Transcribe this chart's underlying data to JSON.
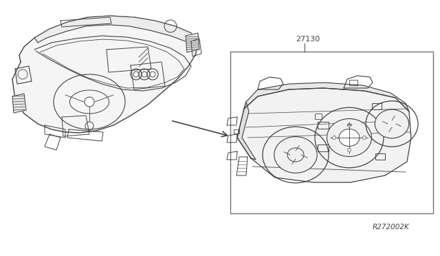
{
  "background_color": "#ffffff",
  "line_color": "#404040",
  "box_color": "#606060",
  "part_number_label": "27130",
  "ref_label": "R272002K",
  "label_fontsize": 8,
  "ref_fontsize": 7.5
}
